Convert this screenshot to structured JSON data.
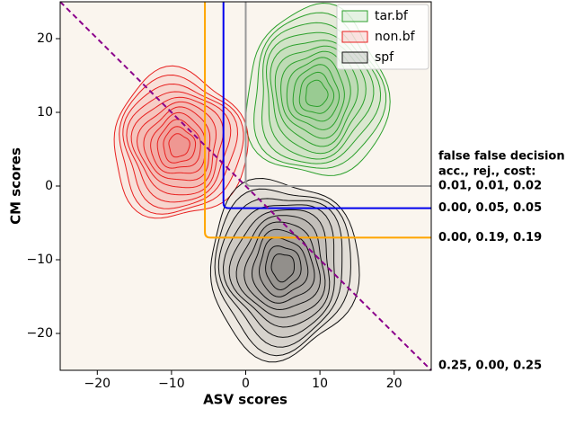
{
  "chart_data": {
    "type": "contour",
    "x_label": "ASV scores",
    "y_label": "CM scores",
    "xlim": [
      -25,
      25
    ],
    "ylim": [
      -25,
      25
    ],
    "xticks": [
      {
        "value": -20,
        "label": "−20"
      },
      {
        "value": -10,
        "label": "−10"
      },
      0,
      10,
      20
    ],
    "yticks": [
      {
        "value": -20,
        "label": "−20"
      },
      {
        "value": -10,
        "label": "−10"
      },
      0,
      10,
      20
    ],
    "series": [
      {
        "name": "tar.bf",
        "color": "#2ca02c",
        "center": [
          9.5,
          12.5
        ],
        "extent": [
          9.5,
          11.5
        ]
      },
      {
        "name": "non.bf",
        "color": "#e8201f",
        "center": [
          -9,
          5.5
        ],
        "extent": [
          9,
          10
        ]
      },
      {
        "name": "spf",
        "color": "#111111",
        "center": [
          5,
          -11
        ],
        "extent": [
          10,
          12
        ]
      }
    ],
    "thresholds_header": [
      "false false decision",
      "acc., rej., cost:"
    ],
    "thresholds": [
      {
        "color": "#999999",
        "x": 0,
        "y": 0,
        "label": "0.01, 0.01, 0.02"
      },
      {
        "color": "#0000ee",
        "x": -3,
        "y": -3,
        "label": "0.00, 0.05, 0.05"
      },
      {
        "color": "#ffa500",
        "x": -5.5,
        "y": -7,
        "label": "0.00, 0.19, 0.19"
      }
    ],
    "diagonal": {
      "color": "#8b008b",
      "label": "0.25, 0.00, 0.25"
    }
  }
}
